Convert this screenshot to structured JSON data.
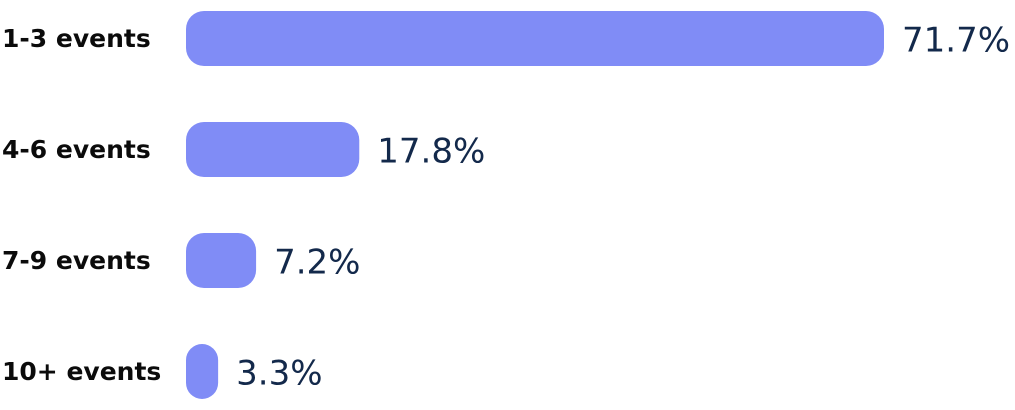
{
  "chart_data": {
    "type": "bar",
    "orientation": "horizontal",
    "categories": [
      "1-3 events",
      "4-6 events",
      "7-9 events",
      "10+ events"
    ],
    "values": [
      71.7,
      17.8,
      7.2,
      3.3
    ],
    "value_labels": [
      "71.7%",
      "17.8%",
      "7.2%",
      "3.3%"
    ],
    "unit": "%",
    "xlim": [
      0,
      71.7
    ],
    "grid": false,
    "legend": "none"
  },
  "colors": {
    "bar": "#808cf6",
    "category_text": "#0b0b0b",
    "value_text": "#13294b"
  }
}
